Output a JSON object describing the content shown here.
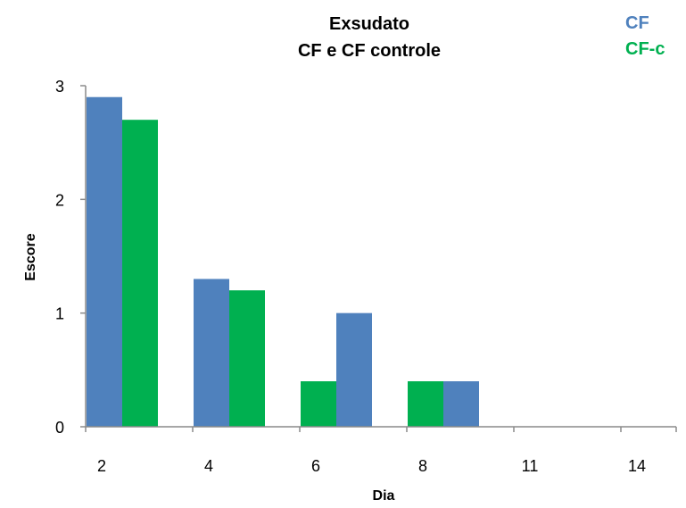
{
  "chart_data": {
    "type": "bar",
    "title": [
      "Exsudato",
      "CF e CF controle"
    ],
    "xlabel": "Dia",
    "ylabel": "Escore",
    "categories": [
      "2",
      "4",
      "6",
      "8",
      "11",
      "14"
    ],
    "series": [
      {
        "name": "CF",
        "color": "#4f81bd",
        "values": [
          2.9,
          1.3,
          1.0,
          0.4,
          0,
          0
        ]
      },
      {
        "name": "CF-c",
        "color": "#00b050",
        "values": [
          2.7,
          1.2,
          0.4,
          0.4,
          0,
          0
        ]
      }
    ],
    "bar_order_per_category": [
      [
        "CF",
        "CF-c"
      ],
      [
        "CF",
        "CF-c"
      ],
      [
        "CF-c",
        "CF"
      ],
      [
        "CF-c",
        "CF"
      ],
      [
        "CF",
        "CF-c"
      ],
      [
        "CF",
        "CF-c"
      ]
    ],
    "yticks": [
      "0",
      "1",
      "2",
      "3"
    ],
    "ylim": [
      0,
      3
    ],
    "grid": false,
    "legend_position": "top-right"
  }
}
